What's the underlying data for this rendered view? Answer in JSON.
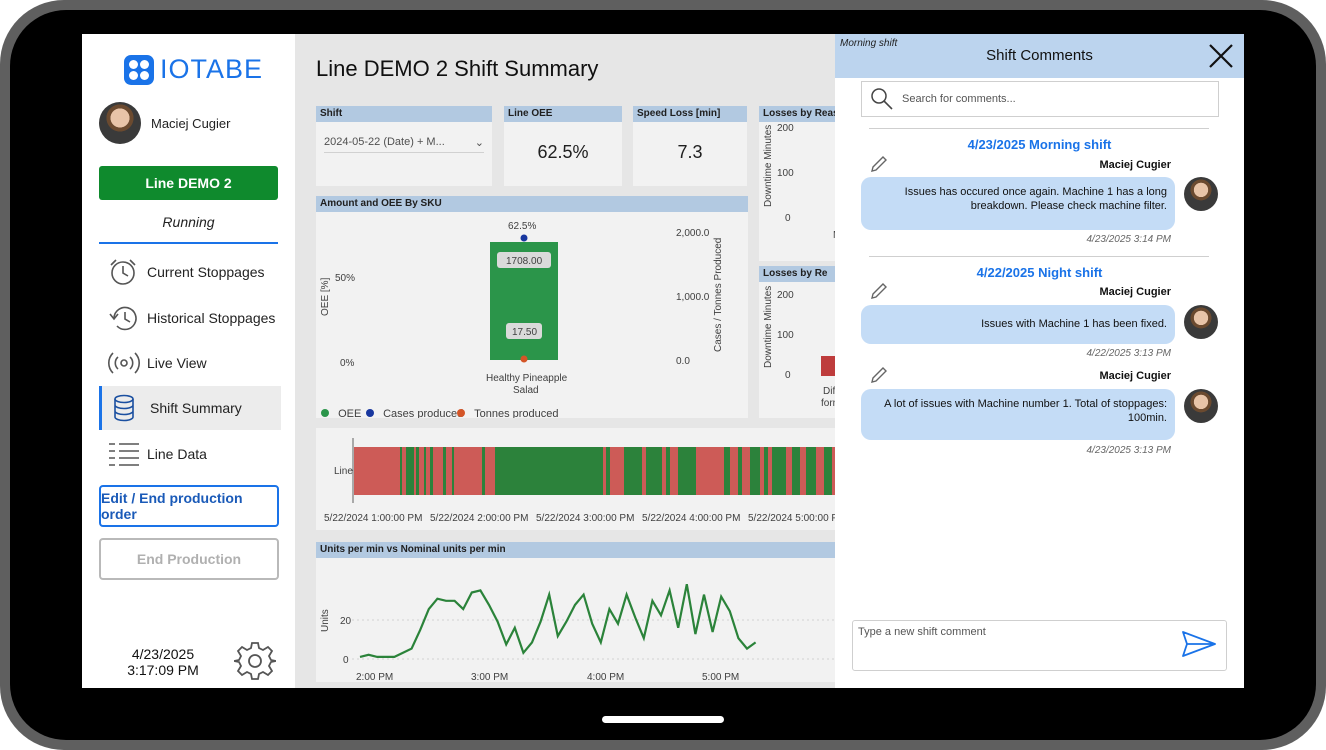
{
  "app": {
    "logo_text": "IOTABE",
    "accent": "#1a73e8"
  },
  "sidebar": {
    "user_name": "Maciej Cugier",
    "line_button": "Line DEMO 2",
    "status": "Running",
    "nav": [
      {
        "label": "Current Stoppages",
        "icon": "alarm-clock-icon"
      },
      {
        "label": "Historical Stoppages",
        "icon": "history-icon"
      },
      {
        "label": "Live View",
        "icon": "live-broadcast-icon"
      },
      {
        "label": "Shift Summary",
        "icon": "database-icon",
        "active": true
      },
      {
        "label": "Line Data",
        "icon": "list-icon"
      }
    ],
    "edit_button": "Edit / End production order",
    "end_button": "End Production",
    "date": "4/23/2025",
    "time": "3:17:09 PM"
  },
  "main": {
    "title": "Line DEMO 2 Shift Summary",
    "shift_card": {
      "header": "Shift",
      "value": "2024-05-22 (Date) + M..."
    },
    "oee_card": {
      "header": "Line OEE",
      "value": "62.5%"
    },
    "speed_card": {
      "header": "Speed Loss [min]",
      "value": "7.3"
    },
    "losses1": {
      "header": "Losses by Reas",
      "ylabel": "Downtime Minutes",
      "ticks": [
        "200",
        "100",
        "0"
      ],
      "cut_label": "M"
    },
    "losses2": {
      "header": "Losses by Re",
      "ylabel": "Downtime Minutes",
      "ticks": [
        "200",
        "100",
        "0"
      ],
      "cut_label1": "Dif",
      "cut_label2": "form"
    },
    "sku_chart": {
      "header": "Amount and OEE By SKU",
      "oee_label": "62.5%",
      "cases_label": "1708.00",
      "tonnes_label": "17.50",
      "left_ticks": [
        "50%",
        "0%"
      ],
      "right_ticks": [
        "2,000.0",
        "1,000.0",
        "0.0"
      ],
      "ylabel_left": "OEE [%]",
      "ylabel_right": "Cases / Tonnes Produced",
      "category_line1": "Healthy Pineapple",
      "category_line2": "Salad",
      "legend": [
        "_OEE",
        "_Cases produced",
        "_Tonnes produced"
      ],
      "legend_colors": [
        "#2e9e4f",
        "#1a3aa8",
        "#e05a2a"
      ]
    },
    "timeline": {
      "row_label": "Line B",
      "ticks": [
        "5/22/2024 1:00:00 PM",
        "5/22/2024 2:00:00 PM",
        "5/22/2024 3:00:00 PM",
        "5/22/2024 4:00:00 PM",
        "5/22/2024 5:00:00 PM"
      ]
    },
    "units_chart": {
      "header": "Units per min vs Nominal units per min",
      "ylabel": "Units",
      "yticks": [
        "20",
        "0"
      ],
      "xticks": [
        "2:00 PM",
        "3:00 PM",
        "4:00 PM",
        "5:00 PM"
      ]
    }
  },
  "panel": {
    "tag": "Morning shift",
    "title": "Shift Comments",
    "search_placeholder": "Search for comments...",
    "shifts": [
      {
        "heading": "4/23/2025 Morning shift"
      },
      {
        "heading": "4/22/2025 Night shift"
      }
    ],
    "comments": [
      {
        "author": "Maciej Cugier",
        "text": "Issues has occured once again. Machine 1 has a long breakdown. Please check machine filter.",
        "time": "4/23/2025 3:14 PM"
      },
      {
        "author": "Maciej Cugier",
        "text": "Issues with Machine 1 has been fixed.",
        "time": "4/22/2025 3:13 PM"
      },
      {
        "author": "Maciej Cugier",
        "text": "A lot of issues with Machine number 1. Total of stoppages: 100min.",
        "time": "4/23/2025 3:13 PM"
      }
    ],
    "composer_placeholder": "Type a new shift comment"
  },
  "chart_data": [
    {
      "type": "bar",
      "title": "Amount and OEE By SKU",
      "categories": [
        "Healthy Pineapple Salad"
      ],
      "series": [
        {
          "name": "_OEE",
          "values": [
            62.5
          ]
        },
        {
          "name": "_Cases produced",
          "values": [
            1708.0
          ]
        },
        {
          "name": "_Tonnes produced",
          "values": [
            17.5
          ]
        }
      ],
      "ylabel": "OEE [%]",
      "y2label": "Cases / Tonnes Produced",
      "y2lim": [
        0,
        2500
      ],
      "legend": "bottom-left"
    },
    {
      "type": "line",
      "title": "Units per min vs Nominal units per min",
      "ylabel": "Units",
      "x_start_minutes_after_2pm": -15,
      "x_step_minutes": 5,
      "values": [
        1,
        2,
        1,
        1,
        1,
        3,
        5,
        14,
        24,
        29,
        28,
        28,
        24,
        32,
        33,
        26,
        18,
        7,
        15,
        3,
        8,
        18,
        31,
        11,
        18,
        26,
        31,
        17,
        8,
        24,
        17,
        31,
        20,
        10,
        28,
        21,
        33,
        15,
        36,
        12,
        31,
        13,
        30,
        23,
        10,
        5,
        8
      ],
      "ylim": [
        0,
        38
      ],
      "grid": true
    }
  ]
}
